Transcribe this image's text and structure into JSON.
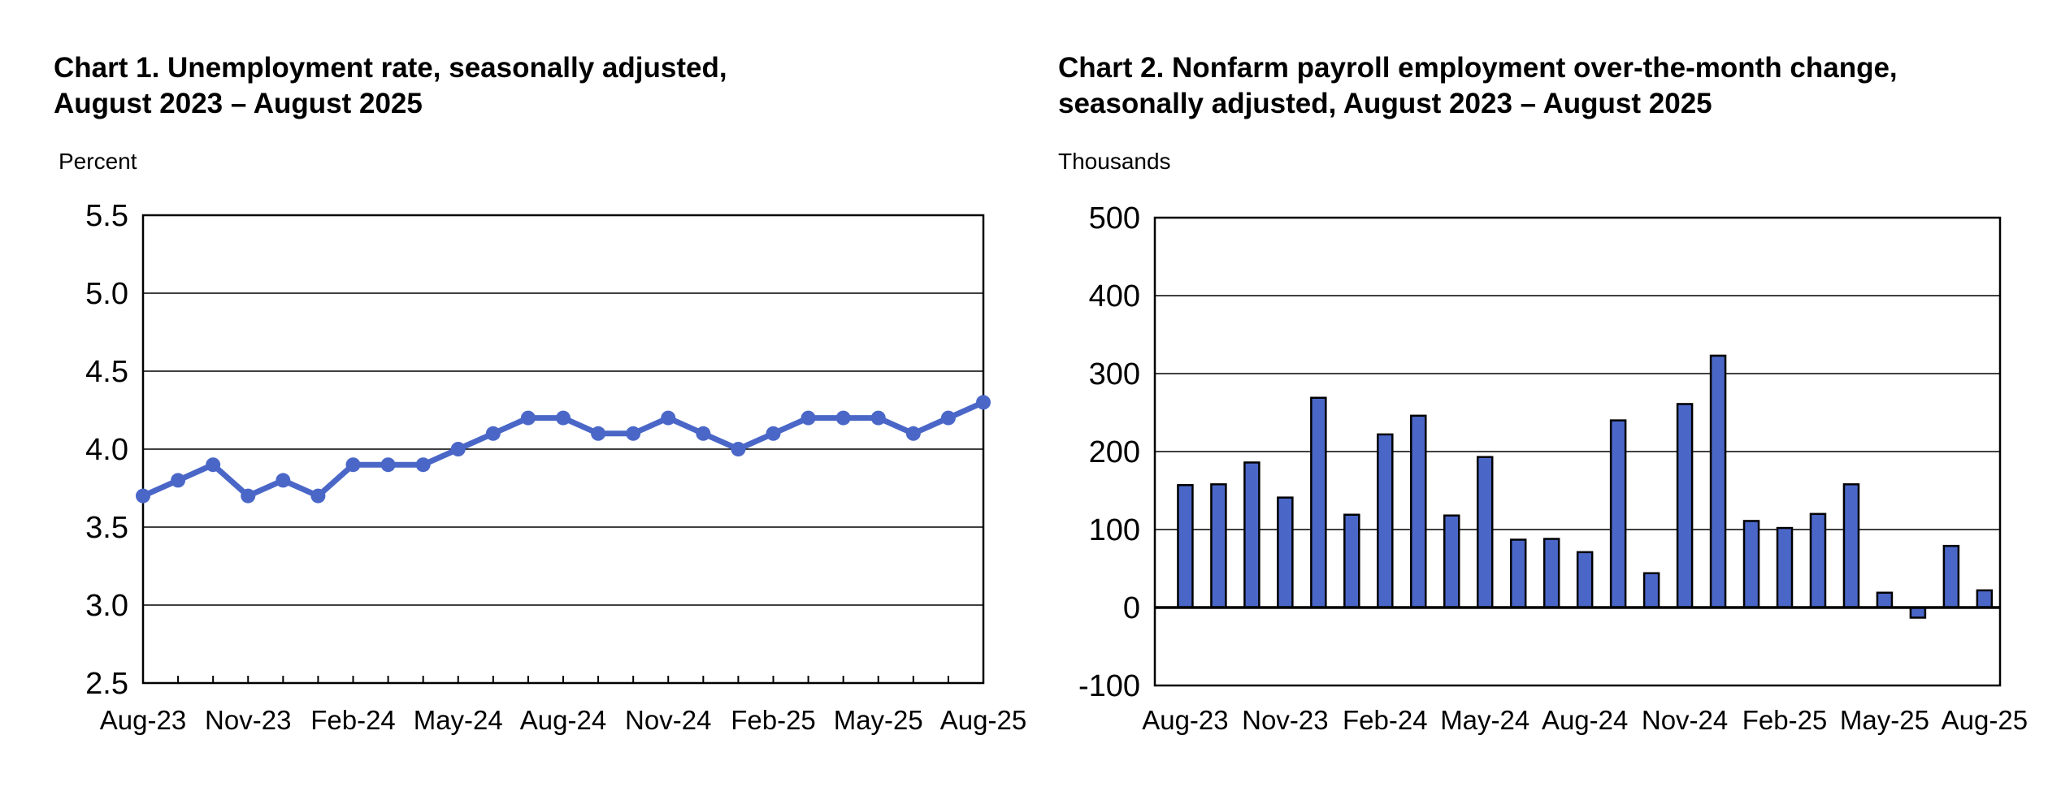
{
  "chart_data": [
    {
      "type": "line",
      "title_line1": "Chart 1. Unemployment rate, seasonally adjusted,",
      "title_line2": "August 2023 – August 2025",
      "ylabel": "Percent",
      "xlabel": "",
      "ylim": [
        2.5,
        5.5
      ],
      "yticks": [
        "2.5",
        "3.0",
        "3.5",
        "4.0",
        "4.5",
        "5.0",
        "5.5"
      ],
      "ytick_values": [
        2.5,
        3.0,
        3.5,
        4.0,
        4.5,
        5.0,
        5.5
      ],
      "xtick_labels": [
        "Aug-23",
        "Nov-23",
        "Feb-24",
        "May-24",
        "Aug-24",
        "Nov-24",
        "Feb-25",
        "May-25",
        "Aug-25"
      ],
      "x": [
        "Aug-23",
        "Sep-23",
        "Oct-23",
        "Nov-23",
        "Dec-23",
        "Jan-24",
        "Feb-24",
        "Mar-24",
        "Apr-24",
        "May-24",
        "Jun-24",
        "Jul-24",
        "Aug-24",
        "Sep-24",
        "Oct-24",
        "Nov-24",
        "Dec-24",
        "Jan-25",
        "Feb-25",
        "Mar-25",
        "Apr-25",
        "May-25",
        "Jun-25",
        "Jul-25",
        "Aug-25"
      ],
      "values": [
        3.7,
        3.8,
        3.9,
        3.7,
        3.8,
        3.7,
        3.9,
        3.9,
        3.9,
        4.0,
        4.1,
        4.2,
        4.2,
        4.1,
        4.1,
        4.2,
        4.1,
        4.0,
        4.1,
        4.2,
        4.2,
        4.2,
        4.1,
        4.2,
        4.3
      ],
      "grid": true,
      "color": "#4a67c8"
    },
    {
      "type": "bar",
      "title_line1": "Chart 2. Nonfarm payroll employment over-the-month change,",
      "title_line2": "seasonally adjusted, August 2023 – August 2025",
      "ylabel": "Thousands",
      "xlabel": "",
      "ylim": [
        -100,
        500
      ],
      "yticks": [
        "-100",
        "0",
        "100",
        "200",
        "300",
        "400",
        "500"
      ],
      "ytick_values": [
        -100,
        0,
        100,
        200,
        300,
        400,
        500
      ],
      "xtick_labels": [
        "Aug-23",
        "Nov-23",
        "Feb-24",
        "May-24",
        "Aug-24",
        "Nov-24",
        "Feb-25",
        "May-25",
        "Aug-25"
      ],
      "x": [
        "Aug-23",
        "Sep-23",
        "Oct-23",
        "Nov-23",
        "Dec-23",
        "Jan-24",
        "Feb-24",
        "Mar-24",
        "Apr-24",
        "May-24",
        "Jun-24",
        "Jul-24",
        "Aug-24",
        "Sep-24",
        "Oct-24",
        "Nov-24",
        "Dec-24",
        "Jan-25",
        "Feb-25",
        "Mar-25",
        "Apr-25",
        "May-25",
        "Jun-25",
        "Jul-25",
        "Aug-25"
      ],
      "values": [
        157,
        158,
        186,
        141,
        269,
        119,
        222,
        246,
        118,
        193,
        87,
        88,
        71,
        240,
        44,
        261,
        323,
        111,
        102,
        120,
        158,
        19,
        -13,
        79,
        22
      ],
      "grid": true,
      "color": "#4a67c8"
    }
  ]
}
